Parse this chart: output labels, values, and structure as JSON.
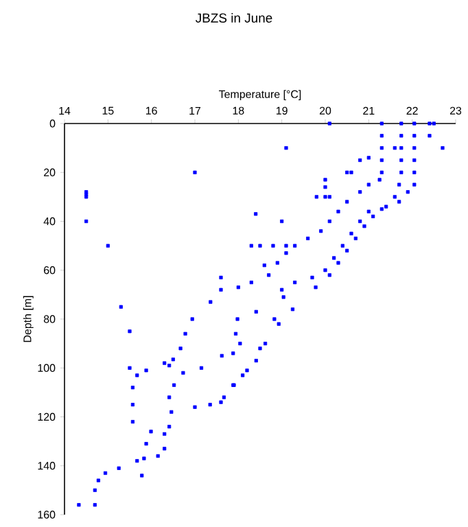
{
  "chart_data": {
    "type": "scatter",
    "title": "JBZS in June",
    "xlabel": "Temperature [°C]",
    "ylabel": "Depth [m]",
    "xlim": [
      14,
      23
    ],
    "ylim": [
      160,
      0
    ],
    "xticks": [
      14,
      15,
      16,
      17,
      18,
      19,
      20,
      21,
      22,
      23
    ],
    "yticks": [
      0,
      20,
      40,
      60,
      80,
      100,
      120,
      140,
      160
    ],
    "marker": "square",
    "grid": false,
    "series": [
      {
        "color": "#0000ff",
        "x": [
          20.1,
          22.4,
          22.5,
          22.4,
          22.7,
          19.1,
          21.6,
          17.0,
          14.5,
          14.5,
          14.5,
          14.5,
          15.0,
          20.0,
          20.0,
          20.0,
          20.1,
          19.8,
          20.5,
          20.6,
          20.8,
          21.0,
          18.4,
          19.0,
          18.3,
          18.5,
          18.8,
          19.1,
          18.6,
          17.6,
          15.3,
          15.5,
          15.5,
          21.3,
          21.3,
          21.3,
          21.3,
          21.3,
          21.25,
          21.0,
          20.8,
          20.5,
          20.3,
          20.1,
          19.9,
          19.6,
          19.3,
          19.1,
          18.9,
          18.7,
          18.3,
          18.0,
          17.6,
          21.75,
          21.75,
          21.75,
          21.75,
          21.75,
          21.7,
          21.6,
          21.4,
          21.0,
          20.8,
          20.6,
          20.4,
          20.2,
          20.0,
          19.7,
          19.3,
          19.0,
          22.05,
          22.05,
          22.05,
          22.05,
          22.05,
          22.05,
          21.9,
          21.7,
          21.3,
          21.1,
          20.9,
          20.7,
          20.5,
          20.3,
          20.1,
          19.78,
          19.25,
          18.93,
          18.62,
          18.41,
          18.1,
          17.88,
          17.67,
          19.04,
          18.83,
          18.5,
          18.2,
          17.9,
          17.6,
          17.35,
          17.0,
          18.41,
          17.98,
          17.94,
          18.04,
          17.88,
          17.62,
          17.15,
          16.73,
          16.52,
          16.41,
          16.46,
          16.41,
          16.3,
          17.36,
          16.94,
          16.78,
          16.67,
          16.5,
          16.41,
          16.3,
          15.88,
          15.67,
          15.57,
          15.57,
          15.57,
          15.99,
          15.88,
          15.83,
          15.78,
          16.3,
          16.15,
          15.67,
          15.25,
          14.94,
          14.78,
          14.7,
          14.7,
          14.33
        ],
        "values": [
          0,
          0,
          0,
          5,
          10,
          10,
          10,
          20,
          28,
          29,
          30,
          40,
          50,
          23,
          26,
          30,
          30,
          30,
          20,
          20,
          15,
          14,
          37,
          40,
          50,
          50,
          50,
          50,
          58,
          63,
          75,
          85,
          100,
          0,
          5,
          10,
          15,
          20,
          23,
          25,
          28,
          32,
          36,
          40,
          44,
          47,
          50,
          53,
          57,
          62,
          65,
          67,
          68,
          0,
          5,
          10,
          15,
          20,
          25,
          30,
          34,
          36,
          40,
          45,
          50,
          55,
          60,
          63,
          65,
          68,
          0,
          5,
          10,
          15,
          20,
          25,
          28,
          32,
          35,
          38,
          42,
          47,
          52,
          57,
          62,
          67,
          76,
          82,
          90,
          97,
          103,
          107,
          112,
          71,
          80,
          92,
          101,
          107,
          114,
          115,
          116,
          77,
          80,
          86,
          90,
          94,
          95,
          100,
          102,
          107,
          112,
          118,
          124,
          127,
          73,
          80,
          86,
          92,
          96.5,
          99,
          98,
          101,
          103,
          108,
          115,
          122,
          126,
          131,
          137,
          144,
          133,
          136,
          138,
          141,
          143,
          146,
          150,
          156,
          156
        ]
      }
    ]
  }
}
